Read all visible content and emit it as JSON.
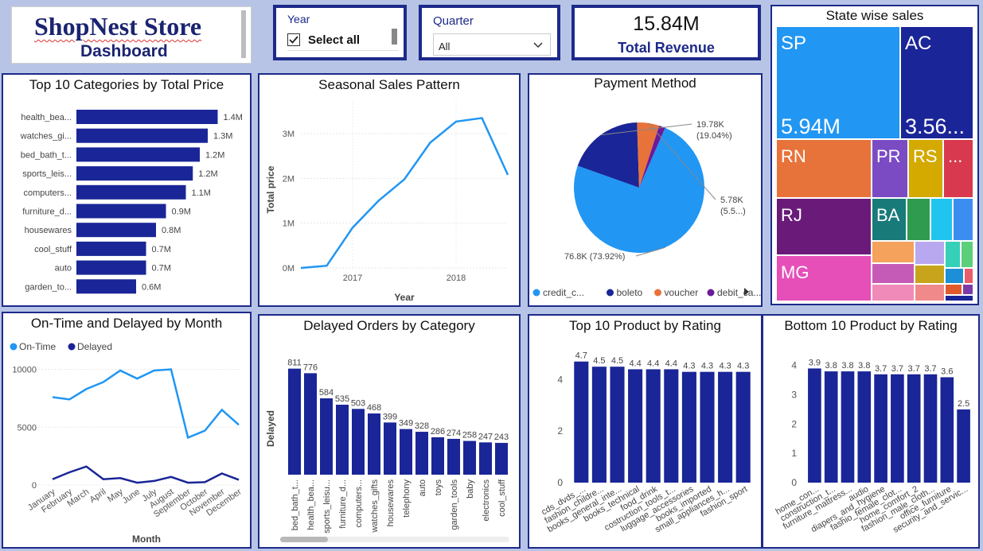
{
  "brand": {
    "title": "ShopNest Store",
    "subtitle": "Dashboard"
  },
  "filters": {
    "year": {
      "label": "Year",
      "option": "Select all"
    },
    "quarter": {
      "label": "Quarter",
      "value": "All"
    }
  },
  "kpi": {
    "value": "15.84M",
    "label": "Total Revenue"
  },
  "colors": {
    "navy": "#1a2597",
    "blue": "#2196f3",
    "orange": "#e8733a",
    "purple": "#6a1b9a",
    "border": "#1d2a8a"
  },
  "icons": [
    "checkbox-checked-icon",
    "chevron-down-icon",
    "play-right-icon",
    "scroll-thumb"
  ],
  "chart_data": [
    {
      "id": "top_categories",
      "type": "bar",
      "orientation": "horizontal",
      "title": "Top 10 Categories by Total Price",
      "categories": [
        "health_bea...",
        "watches_gi...",
        "bed_bath_t...",
        "sports_leis...",
        "computers...",
        "furniture_d...",
        "housewares",
        "cool_stuff",
        "auto",
        "garden_to..."
      ],
      "values": [
        1.42,
        1.32,
        1.24,
        1.17,
        1.1,
        0.9,
        0.8,
        0.7,
        0.7,
        0.6
      ],
      "labels": [
        "1.4M",
        "1.3M",
        "1.2M",
        "1.2M",
        "1.1M",
        "0.9M",
        "0.8M",
        "0.7M",
        "0.7M",
        "0.6M"
      ],
      "xlim": [
        0,
        1.6
      ]
    },
    {
      "id": "seasonal",
      "type": "line",
      "title": "Seasonal Sales Pattern",
      "xlabel": "Year",
      "ylabel": "Total price",
      "x_ticks": [
        "2017",
        "2018"
      ],
      "y_ticks": [
        "0M",
        "1M",
        "2M",
        "3M"
      ],
      "x": [
        2016.5,
        2016.75,
        2017,
        2017.25,
        2017.5,
        2017.75,
        2018,
        2018.25,
        2018.5
      ],
      "values": [
        0.0,
        0.05,
        0.9,
        1.5,
        1.98,
        2.8,
        3.27,
        3.35,
        2.08
      ],
      "xlim": [
        2016.5,
        2018.5
      ],
      "ylim": [
        0,
        3.5
      ]
    },
    {
      "id": "payment",
      "type": "pie",
      "title": "Payment Method",
      "slices": [
        {
          "name": "credit_c...",
          "value": 73.92,
          "color": "#2196f3"
        },
        {
          "name": "boleto",
          "value": 19.04,
          "color": "#1a2597"
        },
        {
          "name": "voucher",
          "value": 5.5,
          "color": "#e8733a"
        },
        {
          "name": "debit_ca...",
          "value": 1.54,
          "color": "#6a1b9a"
        }
      ],
      "labels": [
        {
          "line1": "76.8K (73.92%)",
          "line2": ""
        },
        {
          "line1": "19.78K",
          "line2": "(19.04%)"
        },
        {
          "line1": "5.78K",
          "line2": "(5.5...)"
        }
      ]
    },
    {
      "id": "state_treemap",
      "type": "treemap",
      "title": "State wise sales",
      "items": [
        {
          "name": "SP",
          "value_label": "5.94M",
          "color": "#2196f3"
        },
        {
          "name": "AC",
          "value_label": "3.56...",
          "color": "#1a2597"
        },
        {
          "name": "RN",
          "color": "#e8733a"
        },
        {
          "name": "PR",
          "color": "#7b4bc4"
        },
        {
          "name": "RS",
          "color": "#d4a900"
        },
        {
          "name": "...",
          "color": "#d8394e"
        },
        {
          "name": "RJ",
          "color": "#6a1b7a"
        },
        {
          "name": "BA",
          "color": "#197a7a"
        },
        {
          "name": "MG",
          "color": "#e64fb8"
        }
      ]
    },
    {
      "id": "ontime_delayed",
      "type": "line",
      "title": "On-Time and Delayed by Month",
      "xlabel": "Month",
      "legend": [
        "On-Time",
        "Delayed"
      ],
      "categories": [
        "January",
        "February",
        "March",
        "April",
        "May",
        "June",
        "July",
        "August",
        "September",
        "October",
        "November",
        "December"
      ],
      "y_ticks": [
        "0",
        "5000",
        "10000"
      ],
      "series": [
        {
          "name": "On-Time",
          "values": [
            7600,
            7400,
            8300,
            8900,
            9900,
            9200,
            9900,
            10000,
            4100,
            4700,
            6500,
            5200
          ],
          "color": "#2196f3"
        },
        {
          "name": "Delayed",
          "values": [
            500,
            1100,
            1600,
            500,
            600,
            200,
            350,
            700,
            200,
            250,
            1000,
            450
          ],
          "color": "#1a2597"
        }
      ],
      "ylim": [
        0,
        11000
      ]
    },
    {
      "id": "delayed_by_category",
      "type": "bar",
      "title": "Delayed Orders by Category",
      "ylabel": "Delayed",
      "categories": [
        "bed_bath_t...",
        "health_bea...",
        "sports_leisu...",
        "furniture_d...",
        "computers...",
        "watches_gifts",
        "housewares",
        "telephony",
        "auto",
        "toys",
        "garden_tools",
        "baby",
        "electronics",
        "cool_stuff"
      ],
      "values": [
        811,
        776,
        584,
        535,
        503,
        468,
        399,
        349,
        328,
        286,
        274,
        258,
        247,
        243
      ],
      "ylim": [
        0,
        900
      ]
    },
    {
      "id": "top_rating",
      "type": "bar",
      "title": "Top 10 Product by Rating",
      "categories": [
        "cds_dvds_...",
        "fashion_childre...",
        "books_general_inte...",
        "books_technical",
        "food_drink",
        "costruction_tools_t...",
        "luggage_accessories",
        "books_imported",
        "small_appliances_h...",
        "fashion_sport"
      ],
      "values": [
        4.7,
        4.5,
        4.5,
        4.4,
        4.4,
        4.4,
        4.3,
        4.3,
        4.3,
        4.3
      ],
      "y_ticks": [
        "0",
        "2",
        "4"
      ],
      "ylim": [
        0,
        5
      ]
    },
    {
      "id": "bottom_rating",
      "type": "bar",
      "title": "Bottom 10 Product by Rating",
      "categories": [
        "home_con...",
        "construction_t...",
        "furniture_mattress...",
        "audio",
        "diapers_and_hygiene",
        "fashio_female_clot...",
        "home_comfort_2",
        "fashion_male_cloth...",
        "office_furniture",
        "security_and_servic..."
      ],
      "values": [
        3.9,
        3.8,
        3.8,
        3.8,
        3.7,
        3.7,
        3.7,
        3.7,
        3.6,
        2.5
      ],
      "y_ticks": [
        "0",
        "1",
        "2",
        "3",
        "4"
      ],
      "ylim": [
        0,
        4.4
      ]
    }
  ]
}
